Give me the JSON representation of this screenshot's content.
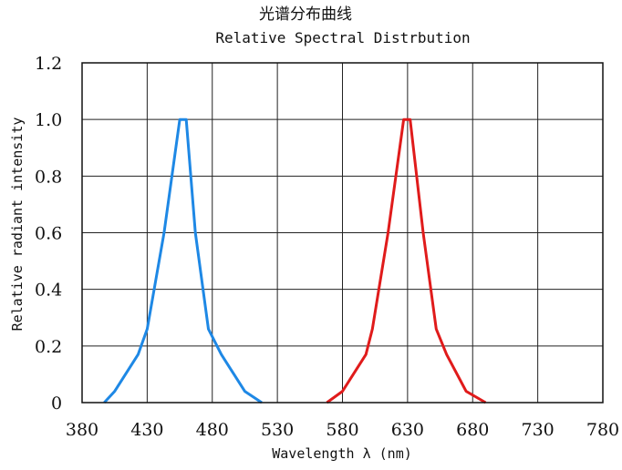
{
  "chart_data": {
    "type": "line",
    "title": "光谱分布曲线",
    "subtitle": "Relative Spectral Distrbution",
    "xlabel": "Wavelength  λ  (nm)",
    "ylabel": "Relative radiant intensity",
    "xlim": [
      380,
      780
    ],
    "ylim": [
      0,
      1.2
    ],
    "x_ticks": [
      "380",
      "430",
      "480",
      "530",
      "580",
      "630",
      "680",
      "730",
      "780"
    ],
    "y_ticks": [
      "0",
      "0.2",
      "0.4",
      "0.6",
      "0.8",
      "1.0",
      "1.2"
    ],
    "grid": true,
    "series": [
      {
        "color": "#1e88e5",
        "points": [
          [
            397,
            0.0
          ],
          [
            405,
            0.04
          ],
          [
            423,
            0.17
          ],
          [
            430,
            0.26
          ],
          [
            443,
            0.6
          ],
          [
            455,
            1.0
          ],
          [
            460,
            1.0
          ],
          [
            467,
            0.6
          ],
          [
            477,
            0.26
          ],
          [
            487,
            0.17
          ],
          [
            505,
            0.04
          ],
          [
            518,
            0.0
          ]
        ]
      },
      {
        "color": "#e01b1b",
        "points": [
          [
            568,
            0.0
          ],
          [
            580,
            0.04
          ],
          [
            598,
            0.17
          ],
          [
            603,
            0.26
          ],
          [
            615,
            0.6
          ],
          [
            627,
            1.0
          ],
          [
            632,
            1.0
          ],
          [
            642,
            0.6
          ],
          [
            652,
            0.26
          ],
          [
            660,
            0.17
          ],
          [
            675,
            0.04
          ],
          [
            690,
            0.0
          ]
        ]
      }
    ]
  }
}
